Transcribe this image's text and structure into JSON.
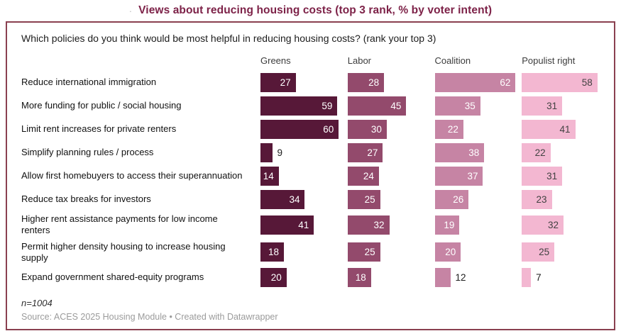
{
  "title": {
    "dot": "·",
    "text": "Views about reducing housing costs (top 3 rank, % by voter intent)"
  },
  "question": "Which policies do you think would be most helpful in reducing housing costs? (rank your top 3)",
  "colors": {
    "title": "#7d2248",
    "box_border": "#8a4050",
    "greens": "#571838",
    "labor": "#934a6c",
    "coalition": "#c684a4",
    "populist_right": "#f3b7d1",
    "value_label_light": "#ffffff",
    "value_label_on_pink": "#424242",
    "value_label_outside": "#1d1d1d"
  },
  "chart_data": {
    "type": "bar",
    "orientation": "horizontal",
    "title": "Views about reducing housing costs (top 3 rank, % by voter intent)",
    "subtitle": "Which policies do you think would be most helpful in reducing housing costs? (rank your top 3)",
    "categories": [
      "Reduce international immigration",
      "More funding for public / social housing",
      "Limit rent increases for private renters",
      "Simplify planning rules / process",
      "Allow first homebuyers to access their superannuation",
      "Reduce tax breaks for investors",
      "Higher rent assistance payments for low income\nrenters",
      "Permit higher density housing to increase housing\nsupply",
      "Expand government shared-equity programs"
    ],
    "series": [
      {
        "name": "Greens",
        "color": "#571838",
        "values": [
          27,
          59,
          60,
          9,
          14,
          34,
          41,
          18,
          20
        ]
      },
      {
        "name": "Labor",
        "color": "#934a6c",
        "values": [
          28,
          45,
          30,
          27,
          24,
          25,
          32,
          25,
          18
        ]
      },
      {
        "name": "Coalition",
        "color": "#c684a4",
        "values": [
          62,
          35,
          22,
          38,
          37,
          26,
          19,
          20,
          12
        ]
      },
      {
        "name": "Populist right",
        "color": "#f3b7d1",
        "values": [
          58,
          31,
          41,
          22,
          31,
          23,
          32,
          25,
          7
        ]
      }
    ],
    "xlim": [
      0,
      63
    ],
    "value_labels": true,
    "series_label_position": "top",
    "grid": false,
    "inside_label_min_value": 14
  },
  "footer": {
    "sample": "n=1004",
    "source": "Source: ACES 2025 Housing Module • Created with Datawrapper"
  }
}
